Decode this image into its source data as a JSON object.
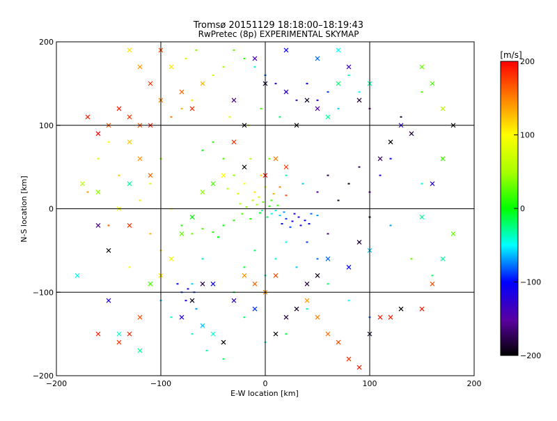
{
  "chart_data": {
    "type": "scatter",
    "title": "Tromsø 20151129 18:18:00–18:19:43",
    "subtitle": "RwPretec (8p) EXPERIMENTAL SKYMAP",
    "xlabel": "E-W location [km]",
    "ylabel": "N-S location [km]",
    "xlim": [
      -200,
      200
    ],
    "ylim": [
      -200,
      200
    ],
    "xticks": [
      "−200",
      "−100",
      "0",
      "100",
      "200"
    ],
    "yticks": [
      "200",
      "100",
      "0",
      "−100",
      "−200"
    ],
    "grid": true,
    "colorbar": {
      "label": "[m/s]",
      "range": [
        -200,
        200
      ],
      "ticks": [
        "200",
        "100",
        "0",
        "−100",
        "−200"
      ]
    },
    "marker_note": "small marks = near echoes; x marks = far echoes",
    "points": [
      [
        -2,
        8,
        30,
        "s"
      ],
      [
        4,
        3,
        10,
        "s"
      ],
      [
        -8,
        5,
        50,
        "s"
      ],
      [
        10,
        -2,
        -40,
        "s"
      ],
      [
        6,
        10,
        20,
        "s"
      ],
      [
        -5,
        -5,
        -10,
        "s"
      ],
      [
        14,
        -8,
        -60,
        "s"
      ],
      [
        20,
        -12,
        -90,
        "s"
      ],
      [
        26,
        -15,
        -110,
        "s"
      ],
      [
        32,
        -10,
        -120,
        "s"
      ],
      [
        38,
        -14,
        -100,
        "s"
      ],
      [
        44,
        -6,
        -80,
        "s"
      ],
      [
        50,
        -8,
        -70,
        "s"
      ],
      [
        28,
        -6,
        -130,
        "s"
      ],
      [
        18,
        -4,
        -70,
        "s"
      ],
      [
        2,
        -10,
        -20,
        "s"
      ],
      [
        -12,
        10,
        60,
        "s"
      ],
      [
        -18,
        2,
        40,
        "s"
      ],
      [
        -22,
        -6,
        20,
        "s"
      ],
      [
        -30,
        -14,
        10,
        "s"
      ],
      [
        -40,
        -20,
        0,
        "s"
      ],
      [
        -50,
        -28,
        10,
        "s"
      ],
      [
        -60,
        -24,
        20,
        "s"
      ],
      [
        -70,
        -30,
        30,
        "s"
      ],
      [
        -80,
        -20,
        10,
        "s"
      ],
      [
        -45,
        -34,
        -5,
        "s"
      ],
      [
        -26,
        18,
        80,
        "s"
      ],
      [
        -36,
        24,
        60,
        "s"
      ],
      [
        -20,
        30,
        100,
        "s"
      ],
      [
        -10,
        20,
        110,
        "s"
      ],
      [
        0,
        26,
        90,
        "s"
      ],
      [
        8,
        18,
        130,
        "s"
      ],
      [
        14,
        26,
        150,
        "s"
      ],
      [
        20,
        16,
        170,
        "s"
      ],
      [
        -4,
        40,
        120,
        "s"
      ],
      [
        -30,
        40,
        40,
        "s"
      ],
      [
        -40,
        60,
        20,
        "s"
      ],
      [
        -50,
        80,
        10,
        "s"
      ],
      [
        -60,
        70,
        0,
        "s"
      ],
      [
        -14,
        60,
        50,
        "s"
      ],
      [
        4,
        60,
        30,
        "s"
      ],
      [
        20,
        40,
        -30,
        "s"
      ],
      [
        36,
        30,
        -60,
        "s"
      ],
      [
        50,
        20,
        -150,
        "s"
      ],
      [
        60,
        40,
        -180,
        "s"
      ],
      [
        70,
        10,
        -190,
        "s"
      ],
      [
        80,
        30,
        -200,
        "s"
      ],
      [
        90,
        50,
        -170,
        "s"
      ],
      [
        100,
        20,
        -150,
        "s"
      ],
      [
        110,
        40,
        -120,
        "s"
      ],
      [
        120,
        60,
        -100,
        "s"
      ],
      [
        100,
        -10,
        -200,
        "s"
      ],
      [
        90,
        -40,
        -190,
        "s"
      ],
      [
        60,
        -30,
        -160,
        "s"
      ],
      [
        40,
        -40,
        -90,
        "s"
      ],
      [
        20,
        -40,
        -50,
        "s"
      ],
      [
        10,
        -60,
        -40,
        "s"
      ],
      [
        -10,
        -50,
        -20,
        "s"
      ],
      [
        -20,
        -70,
        -10,
        "s"
      ],
      [
        0,
        -80,
        -30,
        "s"
      ],
      [
        30,
        -70,
        -60,
        "s"
      ],
      [
        50,
        -60,
        -80,
        "s"
      ],
      [
        -60,
        -60,
        -30,
        "s"
      ],
      [
        -70,
        -90,
        -60,
        "s"
      ],
      [
        -80,
        -100,
        -90,
        "s"
      ],
      [
        -76,
        -110,
        -110,
        "s"
      ],
      [
        -66,
        -120,
        -70,
        "s"
      ],
      [
        -60,
        -140,
        -50,
        "s"
      ],
      [
        -70,
        -150,
        -40,
        "s"
      ],
      [
        -56,
        -170,
        -30,
        "s"
      ],
      [
        -40,
        -180,
        -20,
        "s"
      ],
      [
        -90,
        -130,
        -40,
        "s"
      ],
      [
        -100,
        -110,
        -60,
        "s"
      ],
      [
        -84,
        -90,
        -100,
        "s"
      ],
      [
        -74,
        -96,
        -120,
        "s"
      ],
      [
        -68,
        -100,
        -90,
        "s"
      ],
      [
        10,
        150,
        -120,
        "s"
      ],
      [
        20,
        140,
        -130,
        "s"
      ],
      [
        30,
        130,
        -140,
        "s"
      ],
      [
        0,
        160,
        -80,
        "s"
      ],
      [
        -10,
        170,
        -40,
        "s"
      ],
      [
        -20,
        180,
        10,
        "s"
      ],
      [
        -30,
        190,
        30,
        "s"
      ],
      [
        -40,
        170,
        50,
        "s"
      ],
      [
        -50,
        160,
        70,
        "s"
      ],
      [
        -60,
        150,
        90,
        "s"
      ],
      [
        -70,
        130,
        110,
        "s"
      ],
      [
        -80,
        120,
        130,
        "s"
      ],
      [
        -90,
        110,
        150,
        "s"
      ],
      [
        -76,
        180,
        70,
        "s"
      ],
      [
        -66,
        190,
        40,
        "s"
      ],
      [
        40,
        150,
        -100,
        "s"
      ],
      [
        50,
        130,
        -110,
        "s"
      ],
      [
        60,
        140,
        -90,
        "s"
      ],
      [
        70,
        120,
        -60,
        "s"
      ],
      [
        80,
        160,
        -30,
        "s"
      ],
      [
        90,
        140,
        -50,
        "s"
      ],
      [
        100,
        120,
        -160,
        "s"
      ],
      [
        -4,
        120,
        20,
        "s"
      ],
      [
        14,
        110,
        -20,
        "s"
      ],
      [
        30,
        100,
        -40,
        "s"
      ],
      [
        -16,
        100,
        60,
        "s"
      ],
      [
        -34,
        110,
        80,
        "s"
      ],
      [
        -100,
        60,
        40,
        "s"
      ],
      [
        -110,
        30,
        70,
        "s"
      ],
      [
        -120,
        10,
        110,
        "s"
      ],
      [
        -90,
        0,
        90,
        "s"
      ],
      [
        -110,
        -30,
        130,
        "s"
      ],
      [
        -100,
        -50,
        120,
        "s"
      ],
      [
        -130,
        -70,
        100,
        "s"
      ],
      [
        60,
        -90,
        -20,
        "s"
      ],
      [
        80,
        -110,
        -50,
        "s"
      ],
      [
        100,
        -130,
        -80,
        "s"
      ],
      [
        40,
        -120,
        -30,
        "s"
      ],
      [
        20,
        -150,
        -10,
        "s"
      ],
      [
        0,
        -160,
        -40,
        "s"
      ],
      [
        -20,
        -130,
        -20,
        "s"
      ],
      [
        -30,
        -100,
        -10,
        "s"
      ],
      [
        140,
        -60,
        30,
        "s"
      ],
      [
        160,
        -80,
        -20,
        "s"
      ],
      [
        120,
        -20,
        -70,
        "s"
      ],
      [
        150,
        30,
        -40,
        "s"
      ],
      [
        170,
        60,
        10,
        "s"
      ],
      [
        140,
        90,
        -60,
        "s"
      ],
      [
        130,
        110,
        -180,
        "s"
      ],
      [
        150,
        140,
        20,
        "s"
      ],
      [
        -150,
        80,
        100,
        "s"
      ],
      [
        -160,
        60,
        80,
        "s"
      ],
      [
        -140,
        40,
        120,
        "s"
      ],
      [
        -170,
        20,
        140,
        "s"
      ],
      [
        -150,
        -20,
        160,
        "s"
      ],
      [
        -3,
        -2,
        -35,
        "s"
      ],
      [
        6,
        -6,
        -45,
        "s"
      ],
      [
        12,
        4,
        15,
        "s"
      ],
      [
        -6,
        14,
        70,
        "s"
      ],
      [
        16,
        -18,
        -100,
        "s"
      ],
      [
        34,
        -20,
        -115,
        "s"
      ],
      [
        42,
        -18,
        -105,
        "s"
      ],
      [
        24,
        -22,
        -85,
        "s"
      ],
      [
        -14,
        -12,
        5,
        "s"
      ],
      [
        -24,
        6,
        55,
        "s"
      ],
      [
        -160,
        -150,
        190,
        "x"
      ],
      [
        -140,
        -160,
        180,
        "x"
      ],
      [
        -120,
        -130,
        170,
        "x"
      ],
      [
        -130,
        -150,
        190,
        "x"
      ],
      [
        -150,
        -110,
        -120,
        "x"
      ],
      [
        -140,
        -150,
        -40,
        "x"
      ],
      [
        -110,
        -90,
        20,
        "x"
      ],
      [
        -120,
        -170,
        -30,
        "x"
      ],
      [
        -140,
        120,
        190,
        "x"
      ],
      [
        -130,
        110,
        180,
        "x"
      ],
      [
        -120,
        100,
        170,
        "x"
      ],
      [
        -110,
        100,
        190,
        "x"
      ],
      [
        -150,
        100,
        170,
        "x"
      ],
      [
        -170,
        110,
        190,
        "x"
      ],
      [
        -160,
        90,
        200,
        "x"
      ],
      [
        -130,
        -20,
        180,
        "x"
      ],
      [
        -175,
        30,
        60,
        "x"
      ],
      [
        -160,
        20,
        40,
        "x"
      ],
      [
        -130,
        30,
        -30,
        "x"
      ],
      [
        -140,
        0,
        90,
        "x"
      ],
      [
        -160,
        -20,
        -160,
        "x"
      ],
      [
        -180,
        -80,
        -50,
        "x"
      ],
      [
        -150,
        -50,
        -200,
        "x"
      ],
      [
        -110,
        150,
        180,
        "x"
      ],
      [
        -100,
        190,
        170,
        "x"
      ],
      [
        -90,
        170,
        110,
        "x"
      ],
      [
        -80,
        140,
        160,
        "x"
      ],
      [
        -70,
        120,
        180,
        "x"
      ],
      [
        -60,
        150,
        130,
        "x"
      ],
      [
        -100,
        130,
        150,
        "x"
      ],
      [
        -120,
        170,
        140,
        "x"
      ],
      [
        -130,
        190,
        110,
        "x"
      ],
      [
        120,
        -130,
        190,
        "x"
      ],
      [
        130,
        -120,
        -200,
        "x"
      ],
      [
        90,
        -190,
        190,
        "x"
      ],
      [
        80,
        -180,
        180,
        "x"
      ],
      [
        70,
        -160,
        170,
        "x"
      ],
      [
        60,
        -150,
        160,
        "x"
      ],
      [
        50,
        -130,
        150,
        "x"
      ],
      [
        40,
        -110,
        140,
        "x"
      ],
      [
        30,
        -120,
        -190,
        "x"
      ],
      [
        20,
        -130,
        -180,
        "x"
      ],
      [
        10,
        -150,
        -200,
        "x"
      ],
      [
        100,
        -150,
        -190,
        "x"
      ],
      [
        110,
        -130,
        190,
        "x"
      ],
      [
        150,
        -120,
        190,
        "x"
      ],
      [
        160,
        -90,
        170,
        "x"
      ],
      [
        170,
        -60,
        -30,
        "x"
      ],
      [
        180,
        -30,
        30,
        "x"
      ],
      [
        150,
        -10,
        -30,
        "x"
      ],
      [
        160,
        30,
        -120,
        "x"
      ],
      [
        170,
        60,
        20,
        "x"
      ],
      [
        180,
        100,
        -200,
        "x"
      ],
      [
        170,
        120,
        60,
        "x"
      ],
      [
        160,
        150,
        20,
        "x"
      ],
      [
        150,
        170,
        30,
        "x"
      ],
      [
        140,
        90,
        -180,
        "x"
      ],
      [
        130,
        100,
        -120,
        "x"
      ],
      [
        120,
        80,
        -200,
        "x"
      ],
      [
        110,
        60,
        -170,
        "x"
      ],
      [
        100,
        -50,
        -60,
        "x"
      ],
      [
        90,
        -40,
        -180,
        "x"
      ],
      [
        80,
        -70,
        -100,
        "x"
      ],
      [
        60,
        -60,
        -80,
        "x"
      ],
      [
        50,
        -80,
        -190,
        "x"
      ],
      [
        40,
        -90,
        -180,
        "x"
      ],
      [
        30,
        100,
        -200,
        "x"
      ],
      [
        20,
        140,
        -130,
        "x"
      ],
      [
        40,
        130,
        -190,
        "x"
      ],
      [
        50,
        120,
        -150,
        "x"
      ],
      [
        60,
        110,
        -30,
        "x"
      ],
      [
        70,
        150,
        -20,
        "x"
      ],
      [
        80,
        170,
        -140,
        "x"
      ],
      [
        90,
        130,
        -180,
        "x"
      ],
      [
        100,
        150,
        -30,
        "x"
      ],
      [
        -60,
        -90,
        -180,
        "x"
      ],
      [
        -70,
        -110,
        -190,
        "x"
      ],
      [
        -80,
        -130,
        -120,
        "x"
      ],
      [
        -60,
        -140,
        -60,
        "x"
      ],
      [
        -50,
        -150,
        -40,
        "x"
      ],
      [
        -40,
        -160,
        -200,
        "x"
      ],
      [
        -20,
        -80,
        140,
        "x"
      ],
      [
        -10,
        -90,
        160,
        "x"
      ],
      [
        0,
        -100,
        150,
        "x"
      ],
      [
        10,
        -80,
        170,
        "x"
      ],
      [
        -30,
        80,
        180,
        "x"
      ],
      [
        -20,
        50,
        -200,
        "x"
      ],
      [
        0,
        40,
        190,
        "x"
      ],
      [
        10,
        60,
        150,
        "x"
      ],
      [
        20,
        50,
        180,
        "x"
      ],
      [
        -40,
        40,
        100,
        "x"
      ],
      [
        -50,
        30,
        20,
        "x"
      ],
      [
        -60,
        20,
        40,
        "x"
      ],
      [
        -70,
        -10,
        0,
        "x"
      ],
      [
        -80,
        -30,
        30,
        "x"
      ],
      [
        -90,
        -60,
        90,
        "x"
      ],
      [
        -100,
        -80,
        110,
        "x"
      ],
      [
        -110,
        40,
        160,
        "x"
      ],
      [
        -120,
        60,
        140,
        "x"
      ],
      [
        -130,
        80,
        120,
        "x"
      ],
      [
        -20,
        100,
        -200,
        "x"
      ],
      [
        -30,
        130,
        -160,
        "x"
      ],
      [
        0,
        150,
        -190,
        "x"
      ],
      [
        -10,
        180,
        -140,
        "x"
      ],
      [
        20,
        190,
        -110,
        "x"
      ],
      [
        50,
        180,
        -80,
        "x"
      ],
      [
        70,
        190,
        -50,
        "x"
      ],
      [
        -50,
        -90,
        -110,
        "x"
      ],
      [
        -30,
        -110,
        -130,
        "x"
      ],
      [
        -10,
        -120,
        -90,
        "x"
      ]
    ]
  }
}
